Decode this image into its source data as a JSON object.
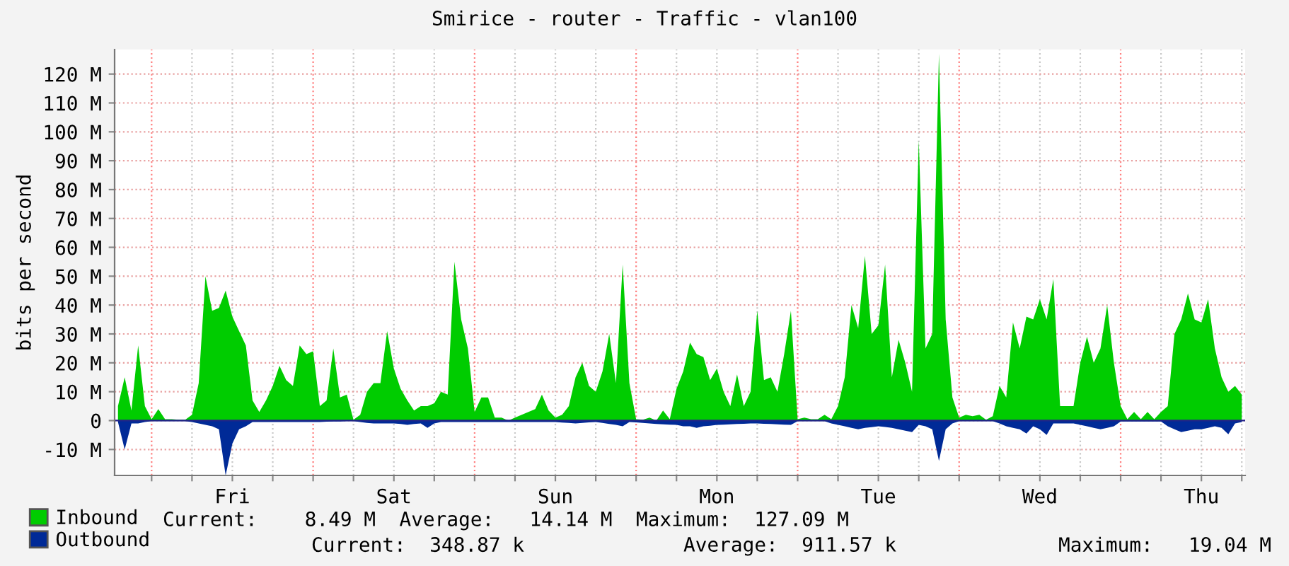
{
  "chart_data": {
    "type": "area",
    "title": "Smirice - router - Traffic - vlan100",
    "ylabel": "bits per second",
    "ylim": [
      -19,
      128.5
    ],
    "yticks": [
      {
        "value": -10,
        "label": "-10 M"
      },
      0,
      {
        "value": 10,
        "label": "10 M"
      },
      {
        "value": 20,
        "label": "20 M"
      },
      {
        "value": 30,
        "label": "30 M"
      },
      {
        "value": 40,
        "label": "40 M"
      },
      {
        "value": 50,
        "label": "50 M"
      },
      {
        "value": 60,
        "label": "60 M"
      },
      {
        "value": 70,
        "label": "70 M"
      },
      {
        "value": 80,
        "label": "80 M"
      },
      {
        "value": 90,
        "label": "90 M"
      },
      {
        "value": 100,
        "label": "100 M"
      },
      {
        "value": 110,
        "label": "110 M"
      },
      {
        "value": 120,
        "label": "120 M"
      }
    ],
    "grid": true,
    "legend": "bottom left",
    "categories": [
      null,
      null,
      null,
      null,
      null,
      null,
      null,
      null,
      null,
      null,
      null,
      null,
      null,
      null,
      null,
      null,
      null,
      "Fri",
      null,
      null,
      null,
      null,
      null,
      null,
      null,
      null,
      null,
      null,
      null,
      null,
      null,
      null,
      null,
      null,
      null,
      null,
      null,
      null,
      null,
      null,
      null,
      "Sat",
      null,
      null,
      null,
      null,
      null,
      null,
      null,
      null,
      null,
      null,
      null,
      null,
      null,
      null,
      null,
      null,
      null,
      null,
      null,
      null,
      null,
      null,
      null,
      "Sun",
      null,
      null,
      null,
      null,
      null,
      null,
      null,
      null,
      null,
      null,
      null,
      null,
      null,
      null,
      null,
      null,
      null,
      null,
      null,
      null,
      null,
      null,
      null,
      "Mon",
      null,
      null,
      null,
      null,
      null,
      null,
      null,
      null,
      null,
      null,
      null,
      null,
      null,
      null,
      null,
      null,
      null,
      null,
      null,
      null,
      null,
      null,
      null,
      "Tue",
      null,
      null,
      null,
      null,
      null,
      null,
      null,
      null,
      null,
      null,
      null,
      null,
      null,
      null,
      null,
      null,
      null,
      null,
      null,
      null,
      null,
      null,
      null,
      "Wed",
      null,
      null,
      null,
      null,
      null,
      null,
      null,
      null,
      null,
      null,
      null,
      null,
      null,
      null,
      null,
      null,
      null,
      null,
      null,
      null,
      null,
      null,
      null,
      "Thu",
      null,
      null,
      null,
      null,
      null,
      null
    ],
    "series": [
      {
        "name": "Inbound",
        "color": "#00cc00",
        "values": [
          5,
          15,
          3.5,
          26,
          5,
          0.5,
          4,
          0.5,
          0.5,
          0.3,
          0.3,
          2,
          13,
          50,
          38,
          39,
          45,
          36,
          31,
          26,
          7,
          3,
          7,
          12,
          19,
          14,
          12,
          26,
          23,
          24,
          5,
          7,
          25,
          8,
          9,
          0.3,
          2,
          10,
          13,
          13,
          31,
          18,
          11,
          7,
          3.5,
          5,
          5,
          6,
          10,
          9,
          55,
          35,
          25,
          3,
          8,
          8,
          1,
          1,
          0,
          1,
          2,
          3,
          4,
          9,
          3.5,
          1,
          2,
          5,
          15,
          20,
          12,
          10,
          17,
          30,
          13,
          54,
          13,
          0.5,
          0.3,
          1,
          0,
          3.5,
          0.5,
          11,
          17,
          27,
          23,
          22,
          14,
          18,
          10,
          5,
          16,
          5,
          10,
          38,
          14,
          15,
          10,
          23,
          38,
          0.5,
          1,
          0.5,
          0.5,
          2,
          0.5,
          5,
          15,
          40,
          32,
          57,
          30,
          33,
          54,
          15,
          28,
          20,
          10,
          97,
          25,
          30,
          127,
          35,
          8,
          1,
          2,
          1.5,
          2,
          0.3,
          1.5,
          12,
          8,
          34,
          25,
          36,
          35,
          42,
          35,
          49,
          5,
          5,
          5,
          20,
          29,
          20,
          25,
          40,
          20,
          5,
          0.5,
          3,
          0.5,
          3,
          0.5,
          3,
          5,
          30,
          35,
          44,
          35,
          34,
          42,
          25,
          15,
          10,
          12,
          9
        ]
      },
      {
        "name": "Outbound",
        "color": "#002a97",
        "values": [
          -0.5,
          -10,
          -1,
          -1,
          -0.5,
          -0.2,
          -0.2,
          -0.2,
          -0.2,
          -0.2,
          -0.2,
          -0.5,
          -1,
          -1.5,
          -2,
          -3,
          -19,
          -8,
          -3,
          -2,
          -0.5,
          -0.5,
          -0.5,
          -0.5,
          -0.5,
          -0.5,
          -0.5,
          -0.5,
          -0.5,
          -0.5,
          -0.5,
          -0.4,
          -0.3,
          -0.3,
          -0.2,
          -0.2,
          -0.5,
          -0.8,
          -1,
          -1,
          -1,
          -1,
          -1.2,
          -1.5,
          -1.2,
          -1,
          -2.5,
          -1,
          -0.5,
          -0.5,
          -0.5,
          -0.5,
          -0.5,
          -0.5,
          -0.5,
          -0.5,
          -0.5,
          -0.5,
          -0.5,
          -0.5,
          -0.5,
          -0.5,
          -0.5,
          -0.5,
          -0.5,
          -0.5,
          -0.7,
          -0.8,
          -1,
          -0.8,
          -0.6,
          -0.5,
          -0.8,
          -1.2,
          -1.5,
          -2,
          -0.5,
          -0.6,
          -0.8,
          -1,
          -1.2,
          -1.3,
          -1.4,
          -1.5,
          -2,
          -2,
          -2.5,
          -2,
          -1.8,
          -1.5,
          -1.4,
          -1.3,
          -1.2,
          -1.1,
          -1,
          -1,
          -1.1,
          -1.2,
          -1.3,
          -1.4,
          -1.5,
          -0.2,
          -0.2,
          -0.2,
          -0.2,
          -0.2,
          -1,
          -1.5,
          -2,
          -2.5,
          -3,
          -2.5,
          -2.3,
          -2,
          -2.2,
          -2.5,
          -3,
          -3.5,
          -4,
          -1.5,
          -2,
          -3,
          -14,
          -3,
          -1,
          -0.2,
          -0.2,
          -0.2,
          -0.2,
          -0.2,
          -0.2,
          -1,
          -2,
          -2.5,
          -3,
          -4.5,
          -2,
          -3,
          -5,
          -1,
          -1,
          -1,
          -1,
          -1.5,
          -2,
          -2.5,
          -3,
          -2.5,
          -2,
          -0.3,
          -0.3,
          -0.3,
          -0.3,
          -0.3,
          -0.3,
          -0.3,
          -2,
          -3,
          -4,
          -3.5,
          -3,
          -3,
          -2.5,
          -2,
          -2.5,
          -4.7,
          -1,
          -0.5
        ]
      }
    ],
    "annotations": [
      "Current:    8.49 M  Average:   14.14 M  Maximum:  127.09 M",
      "Current:  348.87 k",
      "Average:  911.57 k",
      "Maximum:   19.04 M"
    ]
  }
}
